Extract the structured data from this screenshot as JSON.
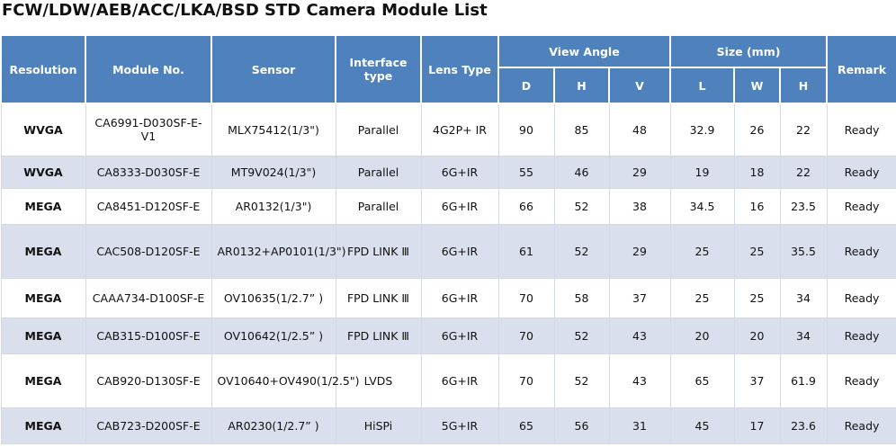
{
  "title": "FCW/LDW/AEB/ACC/LKA/BSD STD Camera Module List",
  "table": {
    "header_top": [
      "Resolution",
      "Module No.",
      "Sensor",
      "Interface type",
      "Lens Type",
      "View Angle",
      "Size (mm)",
      "Remark"
    ],
    "header_sub": [
      "D",
      "H",
      "V",
      "L",
      "W",
      "H"
    ],
    "rows": [
      [
        "WVGA",
        "CA6991-D030SF-E-V1",
        "MLX75412(1/3\")",
        "Parallel",
        "4G2P+ IR",
        "90",
        "85",
        "48",
        "32.9",
        "26",
        "22",
        "Ready"
      ],
      [
        "WVGA",
        "CA8333-D030SF-E",
        "MT9V024(1/3\")",
        "Parallel",
        "6G+IR",
        "55",
        "46",
        "29",
        "19",
        "18",
        "22",
        "Ready"
      ],
      [
        "MEGA",
        "CA8451-D120SF-E",
        "AR0132(1/3\")",
        "Parallel",
        "6G+IR",
        "66",
        "52",
        "38",
        "34.5",
        "16",
        "23.5",
        "Ready"
      ],
      [
        "MEGA",
        "CAC508-D120SF-E",
        "AR0132+AP0101(1/3\")",
        "FPD LINK Ⅲ",
        "6G+IR",
        "61",
        "52",
        "29",
        "25",
        "25",
        "35.5",
        "Ready"
      ],
      [
        "MEGA",
        "CAAA734-D100SF-E",
        "OV10635(1/2.7” )",
        "FPD LINK Ⅲ",
        "6G+IR",
        "70",
        "58",
        "37",
        "25",
        "25",
        "34",
        "Ready"
      ],
      [
        "MEGA",
        "CAB315-D100SF-E",
        "OV10642(1/2.5” )",
        "FPD LINK Ⅲ",
        "6G+IR",
        "70",
        "52",
        "43",
        "20",
        "20",
        "34",
        "Ready"
      ],
      [
        "MEGA",
        "CAB920-D130SF-E",
        "OV10640+OV490(1/2.5\")",
        "LVDS",
        "6G+IR",
        "70",
        "52",
        "43",
        "65",
        "37",
        "61.9",
        "Ready"
      ],
      [
        "MEGA",
        "CAB723-D200SF-E",
        "AR0230(1/2.7” )",
        "HiSPi",
        "5G+IR",
        "65",
        "56",
        "31",
        "45",
        "17",
        "23.6",
        "Ready"
      ]
    ]
  }
}
